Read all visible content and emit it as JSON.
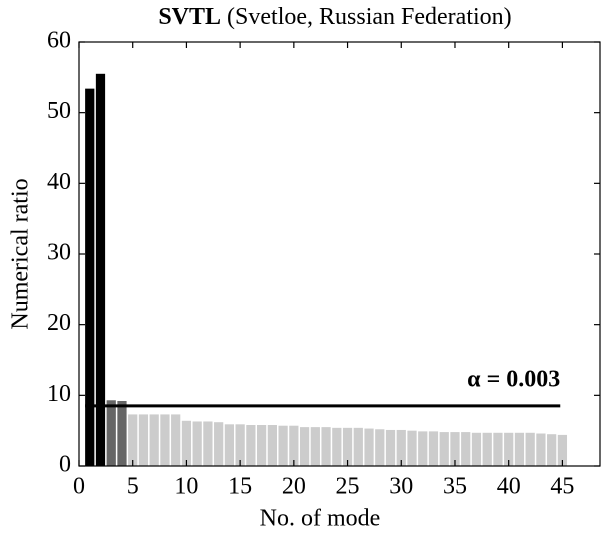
{
  "chart_data": {
    "type": "bar",
    "title_bold": "SVTL",
    "title": "(Svetloe, Russian Federation)",
    "xlabel": "No. of mode",
    "ylabel": "Numerical ratio",
    "x": [
      1,
      2,
      3,
      4,
      5,
      6,
      7,
      8,
      9,
      10,
      11,
      12,
      13,
      14,
      15,
      16,
      17,
      18,
      19,
      20,
      21,
      22,
      23,
      24,
      25,
      26,
      27,
      28,
      29,
      30,
      31,
      32,
      33,
      34,
      35,
      36,
      37,
      38,
      39,
      40,
      41,
      42,
      43,
      44,
      45
    ],
    "values": [
      53.4,
      55.5,
      9.3,
      9.2,
      7.3,
      7.3,
      7.3,
      7.3,
      7.3,
      6.4,
      6.3,
      6.3,
      6.2,
      5.9,
      5.9,
      5.8,
      5.8,
      5.8,
      5.7,
      5.7,
      5.5,
      5.5,
      5.5,
      5.4,
      5.4,
      5.4,
      5.3,
      5.2,
      5.1,
      5.1,
      5.0,
      4.9,
      4.9,
      4.8,
      4.8,
      4.8,
      4.7,
      4.7,
      4.7,
      4.7,
      4.7,
      4.7,
      4.6,
      4.5,
      4.4
    ],
    "bar_colors": [
      "#000000",
      "#000000",
      "#666666",
      "#666666",
      "#cccccc",
      "#cccccc",
      "#cccccc",
      "#cccccc",
      "#cccccc",
      "#cccccc",
      "#cccccc",
      "#cccccc",
      "#cccccc",
      "#cccccc",
      "#cccccc",
      "#cccccc",
      "#cccccc",
      "#cccccc",
      "#cccccc",
      "#cccccc",
      "#cccccc",
      "#cccccc",
      "#cccccc",
      "#cccccc",
      "#cccccc",
      "#cccccc",
      "#cccccc",
      "#cccccc",
      "#cccccc",
      "#cccccc",
      "#cccccc",
      "#cccccc",
      "#cccccc",
      "#cccccc",
      "#cccccc",
      "#cccccc",
      "#cccccc",
      "#cccccc",
      "#cccccc",
      "#cccccc",
      "#cccccc",
      "#cccccc",
      "#cccccc",
      "#cccccc",
      "#cccccc"
    ],
    "hline": {
      "value": 8.5,
      "label": "α = 0.003",
      "color": "#000000"
    },
    "xlim": [
      0,
      48.5
    ],
    "xticks": [
      0,
      5,
      10,
      15,
      20,
      25,
      30,
      35,
      40,
      45
    ],
    "ylim": [
      0,
      60
    ],
    "yticks": [
      0,
      10,
      20,
      30,
      40,
      50,
      60
    ]
  }
}
